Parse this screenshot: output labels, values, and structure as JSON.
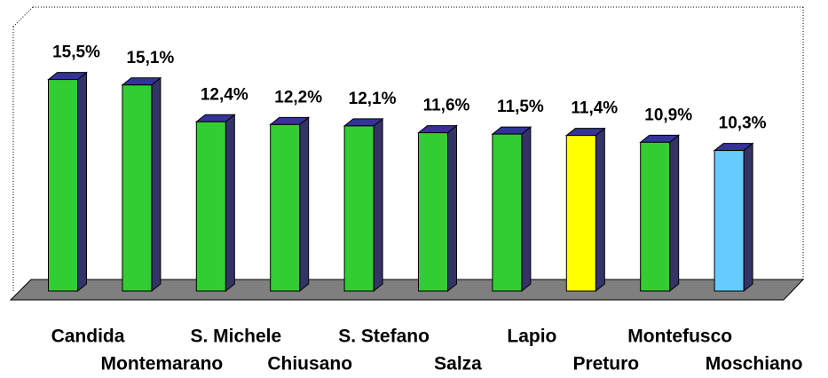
{
  "chart_data": {
    "type": "bar3d",
    "categories": [
      "Candida",
      "Montemarano",
      "S. Michele",
      "Chiusano",
      "S. Stefano",
      "Salza",
      "Lapio",
      "Preturo",
      "Montefusco",
      "Moschiano"
    ],
    "values": [
      15.5,
      15.1,
      12.4,
      12.2,
      12.1,
      11.6,
      11.5,
      11.4,
      10.9,
      10.3
    ],
    "value_labels": [
      "15,5%",
      "15,1%",
      "12,4%",
      "12,2%",
      "12,1%",
      "11,6%",
      "11,5%",
      "11,4%",
      "10,9%",
      "10,3%"
    ],
    "colors": [
      "#33cc33",
      "#33cc33",
      "#33cc33",
      "#33cc33",
      "#33cc33",
      "#33cc33",
      "#33cc33",
      "#ffff00",
      "#33cc33",
      "#66ccff"
    ],
    "ylim": [
      0,
      21
    ]
  }
}
